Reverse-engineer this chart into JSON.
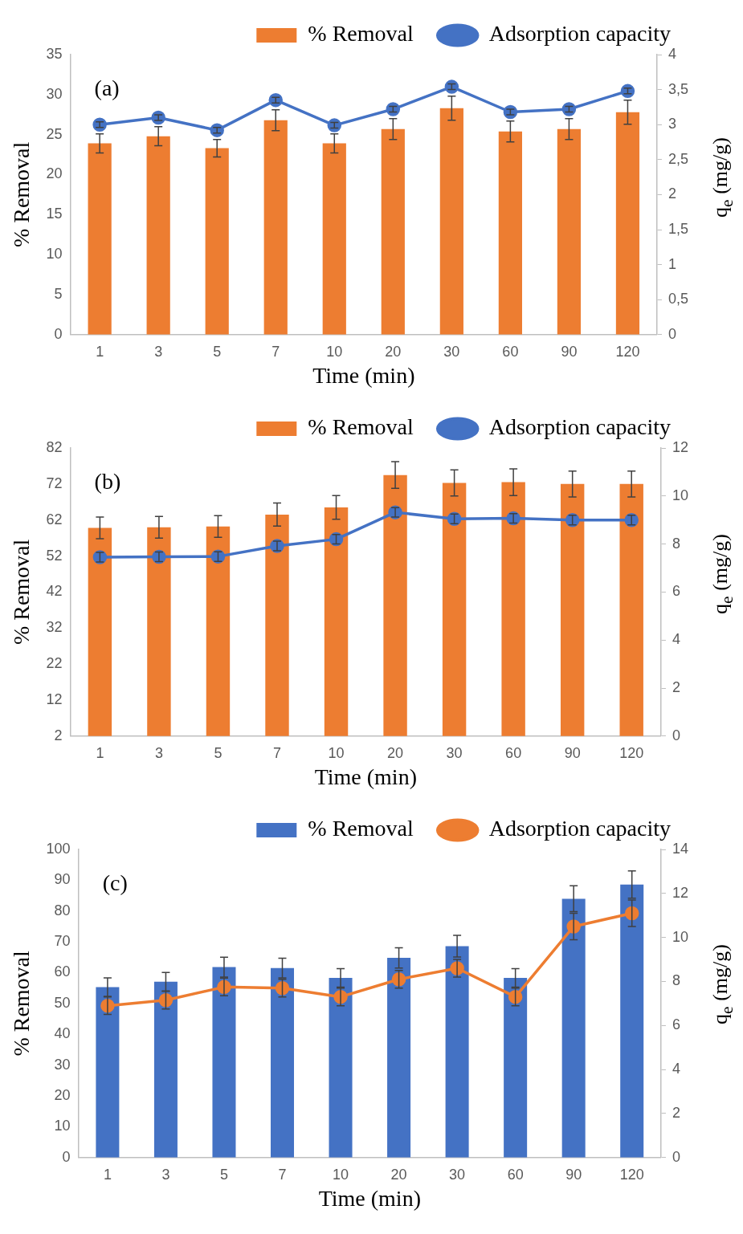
{
  "chart_data": [
    {
      "type": "bar",
      "xlabel": "Time (min)",
      "ylabel": "% Removal",
      "y2label": "q$_{e}$ (mg/g)",
      "annotations": [
        "(a)"
      ],
      "categories": [
        "1",
        "3",
        "5",
        "7",
        "10",
        "20",
        "30",
        "60",
        "90",
        "120"
      ],
      "series": [
        {
          "name": "% Removal",
          "color": "#ed7d31",
          "values": [
            23.9,
            24.8,
            23.3,
            26.8,
            23.9,
            25.7,
            28.3,
            25.4,
            25.7,
            27.8
          ],
          "errors": [
            1.2,
            1.2,
            1.1,
            1.3,
            1.2,
            1.3,
            1.5,
            1.3,
            1.3,
            1.5
          ]
        },
        {
          "name": "Adsorption capacity",
          "type": "line",
          "axis": "y2",
          "color": "#4472c4",
          "values": [
            3.0,
            3.1,
            2.92,
            3.35,
            2.99,
            3.22,
            3.54,
            3.18,
            3.22,
            3.48
          ],
          "errors": [
            0.04,
            0.04,
            0.04,
            0.04,
            0.04,
            0.04,
            0.04,
            0.04,
            0.04,
            0.04
          ]
        }
      ],
      "ylim": [
        0,
        35
      ],
      "yticks": [
        0,
        5,
        10,
        15,
        20,
        25,
        30,
        35
      ],
      "y2lim": [
        0,
        4
      ],
      "y2ticks": [
        0,
        {
          "value": 0.5,
          "label": "0,5"
        },
        1,
        {
          "value": 1.5,
          "label": "1,5"
        },
        2,
        {
          "value": 2.5,
          "label": "2,5"
        },
        3,
        {
          "value": 3.5,
          "label": "3,5"
        },
        4
      ],
      "legend": "top",
      "grid": false,
      "marker": "circle",
      "line_style": "solid"
    },
    {
      "type": "bar",
      "xlabel": "Time (min)",
      "ylabel": "% Removal",
      "y2label": "q$_{e}$ (mg/g)",
      "annotations": [
        "(b)"
      ],
      "categories": [
        "1",
        "3",
        "5",
        "7",
        "10",
        "20",
        "30",
        "60",
        "90",
        "120"
      ],
      "series": [
        {
          "name": "% Removal",
          "color": "#ed7d31",
          "values": [
            59.8,
            60,
            60.2,
            63.5,
            65.5,
            74.5,
            72.3,
            72.5,
            72,
            72
          ],
          "errors": [
            3,
            3,
            3,
            3.2,
            3.3,
            3.7,
            3.6,
            3.7,
            3.6,
            3.6
          ]
        },
        {
          "name": "Adsorption capacity",
          "type": "line",
          "axis": "y2",
          "color": "#4472c4",
          "values": [
            7.45,
            7.47,
            7.48,
            7.92,
            8.2,
            9.32,
            9.05,
            9.07,
            9.0,
            9.0
          ],
          "errors": [
            0.2,
            0.2,
            0.2,
            0.2,
            0.2,
            0.2,
            0.2,
            0.2,
            0.2,
            0.2
          ]
        }
      ],
      "ylim": [
        2,
        82
      ],
      "yticks": [
        2,
        12,
        22,
        32,
        42,
        52,
        62,
        72,
        82
      ],
      "y2lim": [
        0,
        12
      ],
      "y2ticks": [
        0,
        2,
        4,
        6,
        8,
        10,
        12
      ],
      "legend": "top",
      "grid": false,
      "marker": "circle",
      "line_style": "solid"
    },
    {
      "type": "bar",
      "xlabel": "Time (min)",
      "ylabel": "% Removal",
      "y2label": "q$_{e}$ (mg/g)",
      "annotations": [
        "(c)"
      ],
      "categories": [
        "1",
        "3",
        "5",
        "7",
        "10",
        "20",
        "30",
        "60",
        "90",
        "120"
      ],
      "series": [
        {
          "name": "% Removal",
          "color": "#4472c4",
          "values": [
            55.3,
            57.1,
            61.8,
            61.5,
            58.3,
            64.8,
            68.6,
            58.3,
            84,
            88.6
          ],
          "errors": [
            3,
            3,
            3.2,
            3.2,
            3,
            3.3,
            3.5,
            3,
            4.2,
            4.4
          ]
        },
        {
          "name": "Adsorption capacity",
          "type": "line",
          "axis": "y2",
          "color": "#ed7d31",
          "values": [
            6.9,
            7.15,
            7.75,
            7.7,
            7.3,
            8.1,
            8.6,
            7.3,
            10.5,
            11.1
          ],
          "errors": [
            0.4,
            0.4,
            0.4,
            0.4,
            0.4,
            0.4,
            0.4,
            0.4,
            0.6,
            0.6
          ]
        }
      ],
      "ylim": [
        0,
        100
      ],
      "yticks": [
        0,
        10,
        20,
        30,
        40,
        50,
        60,
        70,
        80,
        90,
        100
      ],
      "y2lim": [
        0,
        14
      ],
      "y2ticks": [
        0,
        2,
        4,
        6,
        8,
        10,
        12,
        14
      ],
      "legend": "top",
      "grid": false,
      "marker": "circle",
      "line_style": "solid"
    }
  ]
}
